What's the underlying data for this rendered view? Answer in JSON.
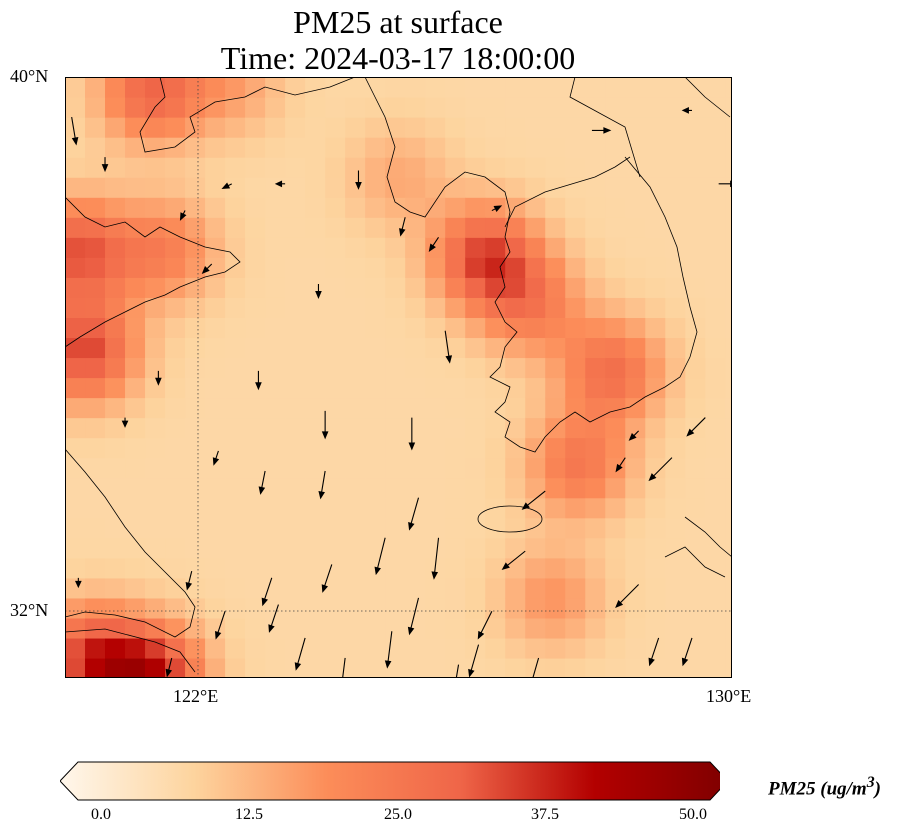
{
  "title": {
    "line1": "PM25 at surface",
    "line2": "Time: 2024-03-17 18:00:00"
  },
  "axes": {
    "lon_range": [
      120,
      130
    ],
    "lat_range": [
      31,
      40
    ],
    "lat_ticks": [
      {
        "value": 40,
        "label": "40°N"
      },
      {
        "value": 32,
        "label": "32°N"
      }
    ],
    "lon_ticks": [
      {
        "value": 122,
        "label": "122°E"
      },
      {
        "value": 130,
        "label": "130°E"
      }
    ]
  },
  "colorbar": {
    "label": "PM25 (ug/m",
    "label_sup": "3",
    "label_end": ")",
    "min": 0,
    "max": 50,
    "ticks": [
      "0.0",
      "12.5",
      "25.0",
      "37.5",
      "50.0"
    ],
    "colors": [
      "#fff7ec",
      "#fdd49e",
      "#fc8d59",
      "#ef6548",
      "#b30000",
      "#7f0000"
    ]
  },
  "field": {
    "background": 9,
    "hotspots": [
      [
        121.3,
        39.8,
        20
      ],
      [
        120.2,
        37.4,
        22
      ],
      [
        120.3,
        35.9,
        24
      ],
      [
        121.5,
        37.4,
        14
      ],
      [
        126.3,
        37.3,
        24
      ],
      [
        127.0,
        36.6,
        14
      ],
      [
        128.2,
        35.6,
        18
      ],
      [
        127.7,
        34.2,
        16
      ],
      [
        120.4,
        31.3,
        24
      ],
      [
        121.3,
        31.0,
        28
      ],
      [
        127.3,
        32.2,
        10
      ],
      [
        122.5,
        39.9,
        8
      ],
      [
        125.0,
        38.5,
        7
      ]
    ]
  },
  "wind_vectors": [
    [
      120.1,
      39.4,
      0.05,
      -0.3
    ],
    [
      120.6,
      38.8,
      0,
      -0.15
    ],
    [
      121.8,
      38.0,
      -0.05,
      -0.1
    ],
    [
      122.5,
      38.4,
      -0.1,
      -0.05
    ],
    [
      123.3,
      38.4,
      -0.1,
      0
    ],
    [
      124.4,
      38.6,
      0,
      -0.2
    ],
    [
      125.1,
      37.9,
      -0.05,
      -0.2
    ],
    [
      125.6,
      37.6,
      -0.1,
      -0.15
    ],
    [
      126.4,
      38.0,
      0.1,
      0.05
    ],
    [
      127.9,
      39.2,
      0.2,
      0
    ],
    [
      129.4,
      39.5,
      -0.1,
      0
    ],
    [
      129.8,
      38.4,
      0.2,
      0
    ],
    [
      122.2,
      37.2,
      -0.1,
      -0.1
    ],
    [
      123.8,
      36.9,
      0,
      -0.15
    ],
    [
      125.7,
      36.2,
      0.05,
      -0.35
    ],
    [
      121.4,
      35.6,
      0,
      -0.15
    ],
    [
      122.9,
      35.6,
      0,
      -0.2
    ],
    [
      123.9,
      35.0,
      0,
      -0.3
    ],
    [
      125.2,
      34.9,
      0,
      -0.35
    ],
    [
      122.3,
      34.4,
      -0.05,
      -0.15
    ],
    [
      123.0,
      34.1,
      -0.05,
      -0.25
    ],
    [
      123.9,
      34.1,
      -0.05,
      -0.3
    ],
    [
      125.3,
      33.7,
      -0.1,
      -0.35
    ],
    [
      125.6,
      33.1,
      -0.05,
      -0.45
    ],
    [
      124.8,
      33.1,
      -0.1,
      -0.4
    ],
    [
      121.9,
      32.6,
      -0.05,
      -0.2
    ],
    [
      123.1,
      32.5,
      -0.1,
      -0.3
    ],
    [
      124.0,
      32.7,
      -0.1,
      -0.3
    ],
    [
      125.3,
      32.2,
      -0.1,
      -0.4
    ],
    [
      126.4,
      32.0,
      -0.15,
      -0.3
    ],
    [
      126.9,
      32.9,
      -0.25,
      -0.2
    ],
    [
      122.4,
      32.0,
      -0.1,
      -0.3
    ],
    [
      123.2,
      32.1,
      -0.1,
      -0.3
    ],
    [
      123.6,
      31.6,
      -0.1,
      -0.35
    ],
    [
      124.2,
      31.3,
      -0.05,
      -0.4
    ],
    [
      124.9,
      31.7,
      -0.05,
      -0.4
    ],
    [
      126.2,
      31.5,
      -0.1,
      -0.35
    ],
    [
      127.1,
      31.3,
      -0.1,
      -0.35
    ],
    [
      128.6,
      32.4,
      -0.25,
      -0.25
    ],
    [
      128.9,
      31.6,
      -0.1,
      -0.3
    ],
    [
      129.4,
      31.6,
      -0.1,
      -0.3
    ],
    [
      125.9,
      31.2,
      -0.05,
      -0.3
    ],
    [
      121.6,
      31.3,
      -0.05,
      -0.2
    ],
    [
      120.2,
      32.5,
      0,
      -0.1
    ],
    [
      127.2,
      33.8,
      -0.25,
      -0.2
    ],
    [
      128.4,
      34.3,
      -0.1,
      -0.15
    ],
    [
      129.1,
      34.3,
      -0.25,
      -0.25
    ],
    [
      129.6,
      34.9,
      -0.2,
      -0.2
    ],
    [
      128.6,
      34.7,
      -0.1,
      -0.1
    ],
    [
      120.9,
      34.9,
      0,
      -0.1
    ]
  ]
}
